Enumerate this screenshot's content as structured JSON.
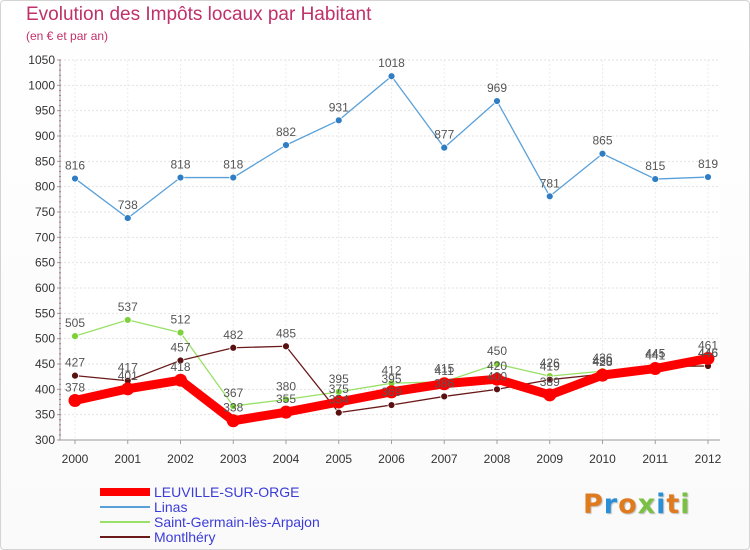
{
  "header": {
    "title": "Evolution des Impôts locaux par Habitant",
    "subtitle": "(en € et par an)"
  },
  "chart_data": {
    "type": "line",
    "title": "Evolution des Impôts locaux par Habitant",
    "ylabel": "(en € et par an)",
    "xlabel": "",
    "x": [
      "2000",
      "2001",
      "2002",
      "2003",
      "2004",
      "2005",
      "2006",
      "2007",
      "2008",
      "2009",
      "2010",
      "2011",
      "2012"
    ],
    "yticks": [
      300,
      350,
      400,
      450,
      500,
      550,
      600,
      650,
      700,
      750,
      800,
      850,
      900,
      950,
      1000,
      1050
    ],
    "ylim": [
      300,
      1050
    ],
    "grid": true,
    "legend_position": "bottom-left",
    "series": [
      {
        "name": "LEUVILLE-SUR-ORGE",
        "color": "#ff0000",
        "style": "thick",
        "values": [
          378,
          401,
          418,
          338,
          355,
          375,
          395,
          411,
          420,
          389,
          428,
          441,
          461
        ],
        "labels": [
          "378",
          "401",
          "418",
          "338",
          "355",
          "375",
          "395",
          "411",
          "420",
          "389",
          "428",
          "441",
          "461"
        ]
      },
      {
        "name": "Linas",
        "color": "#5aa0d8",
        "style": "thin",
        "values": [
          816,
          738,
          818,
          818,
          882,
          931,
          1018,
          877,
          969,
          781,
          865,
          815,
          819
        ],
        "labels": [
          "816",
          "738",
          "818",
          "818",
          "882",
          "931",
          "1018",
          "877",
          "969",
          "781",
          "865",
          "815",
          "819"
        ]
      },
      {
        "name": "Saint-Germain-lès-Arpajon",
        "color": "#99e066",
        "style": "thin",
        "values": [
          505,
          537,
          512,
          367,
          380,
          395,
          412,
          415,
          450,
          426,
          436,
          445,
          446
        ],
        "labels": [
          "505",
          "537",
          "512",
          "367",
          "380",
          "395",
          "412",
          "415",
          "450",
          "426",
          "436",
          "445",
          "446"
        ]
      },
      {
        "name": "Montlhéry",
        "color": "#6b1a1a",
        "style": "thin",
        "values": [
          427,
          417,
          457,
          482,
          485,
          354,
          369,
          386,
          400,
          419,
          430,
          445,
          446
        ],
        "labels": [
          "427",
          "417",
          "457",
          "482",
          "485",
          "354",
          "369",
          "386",
          "400",
          "419",
          "430",
          "445",
          "446"
        ]
      }
    ]
  },
  "logo": {
    "letters": [
      "P",
      "r",
      "o",
      "x",
      "i",
      "t",
      "i"
    ],
    "colors": [
      "#e07a1f",
      "#2a8fd6",
      "#e07a1f",
      "#7ac143",
      "#2a8fd6",
      "#e07a1f",
      "#7ac143"
    ]
  }
}
